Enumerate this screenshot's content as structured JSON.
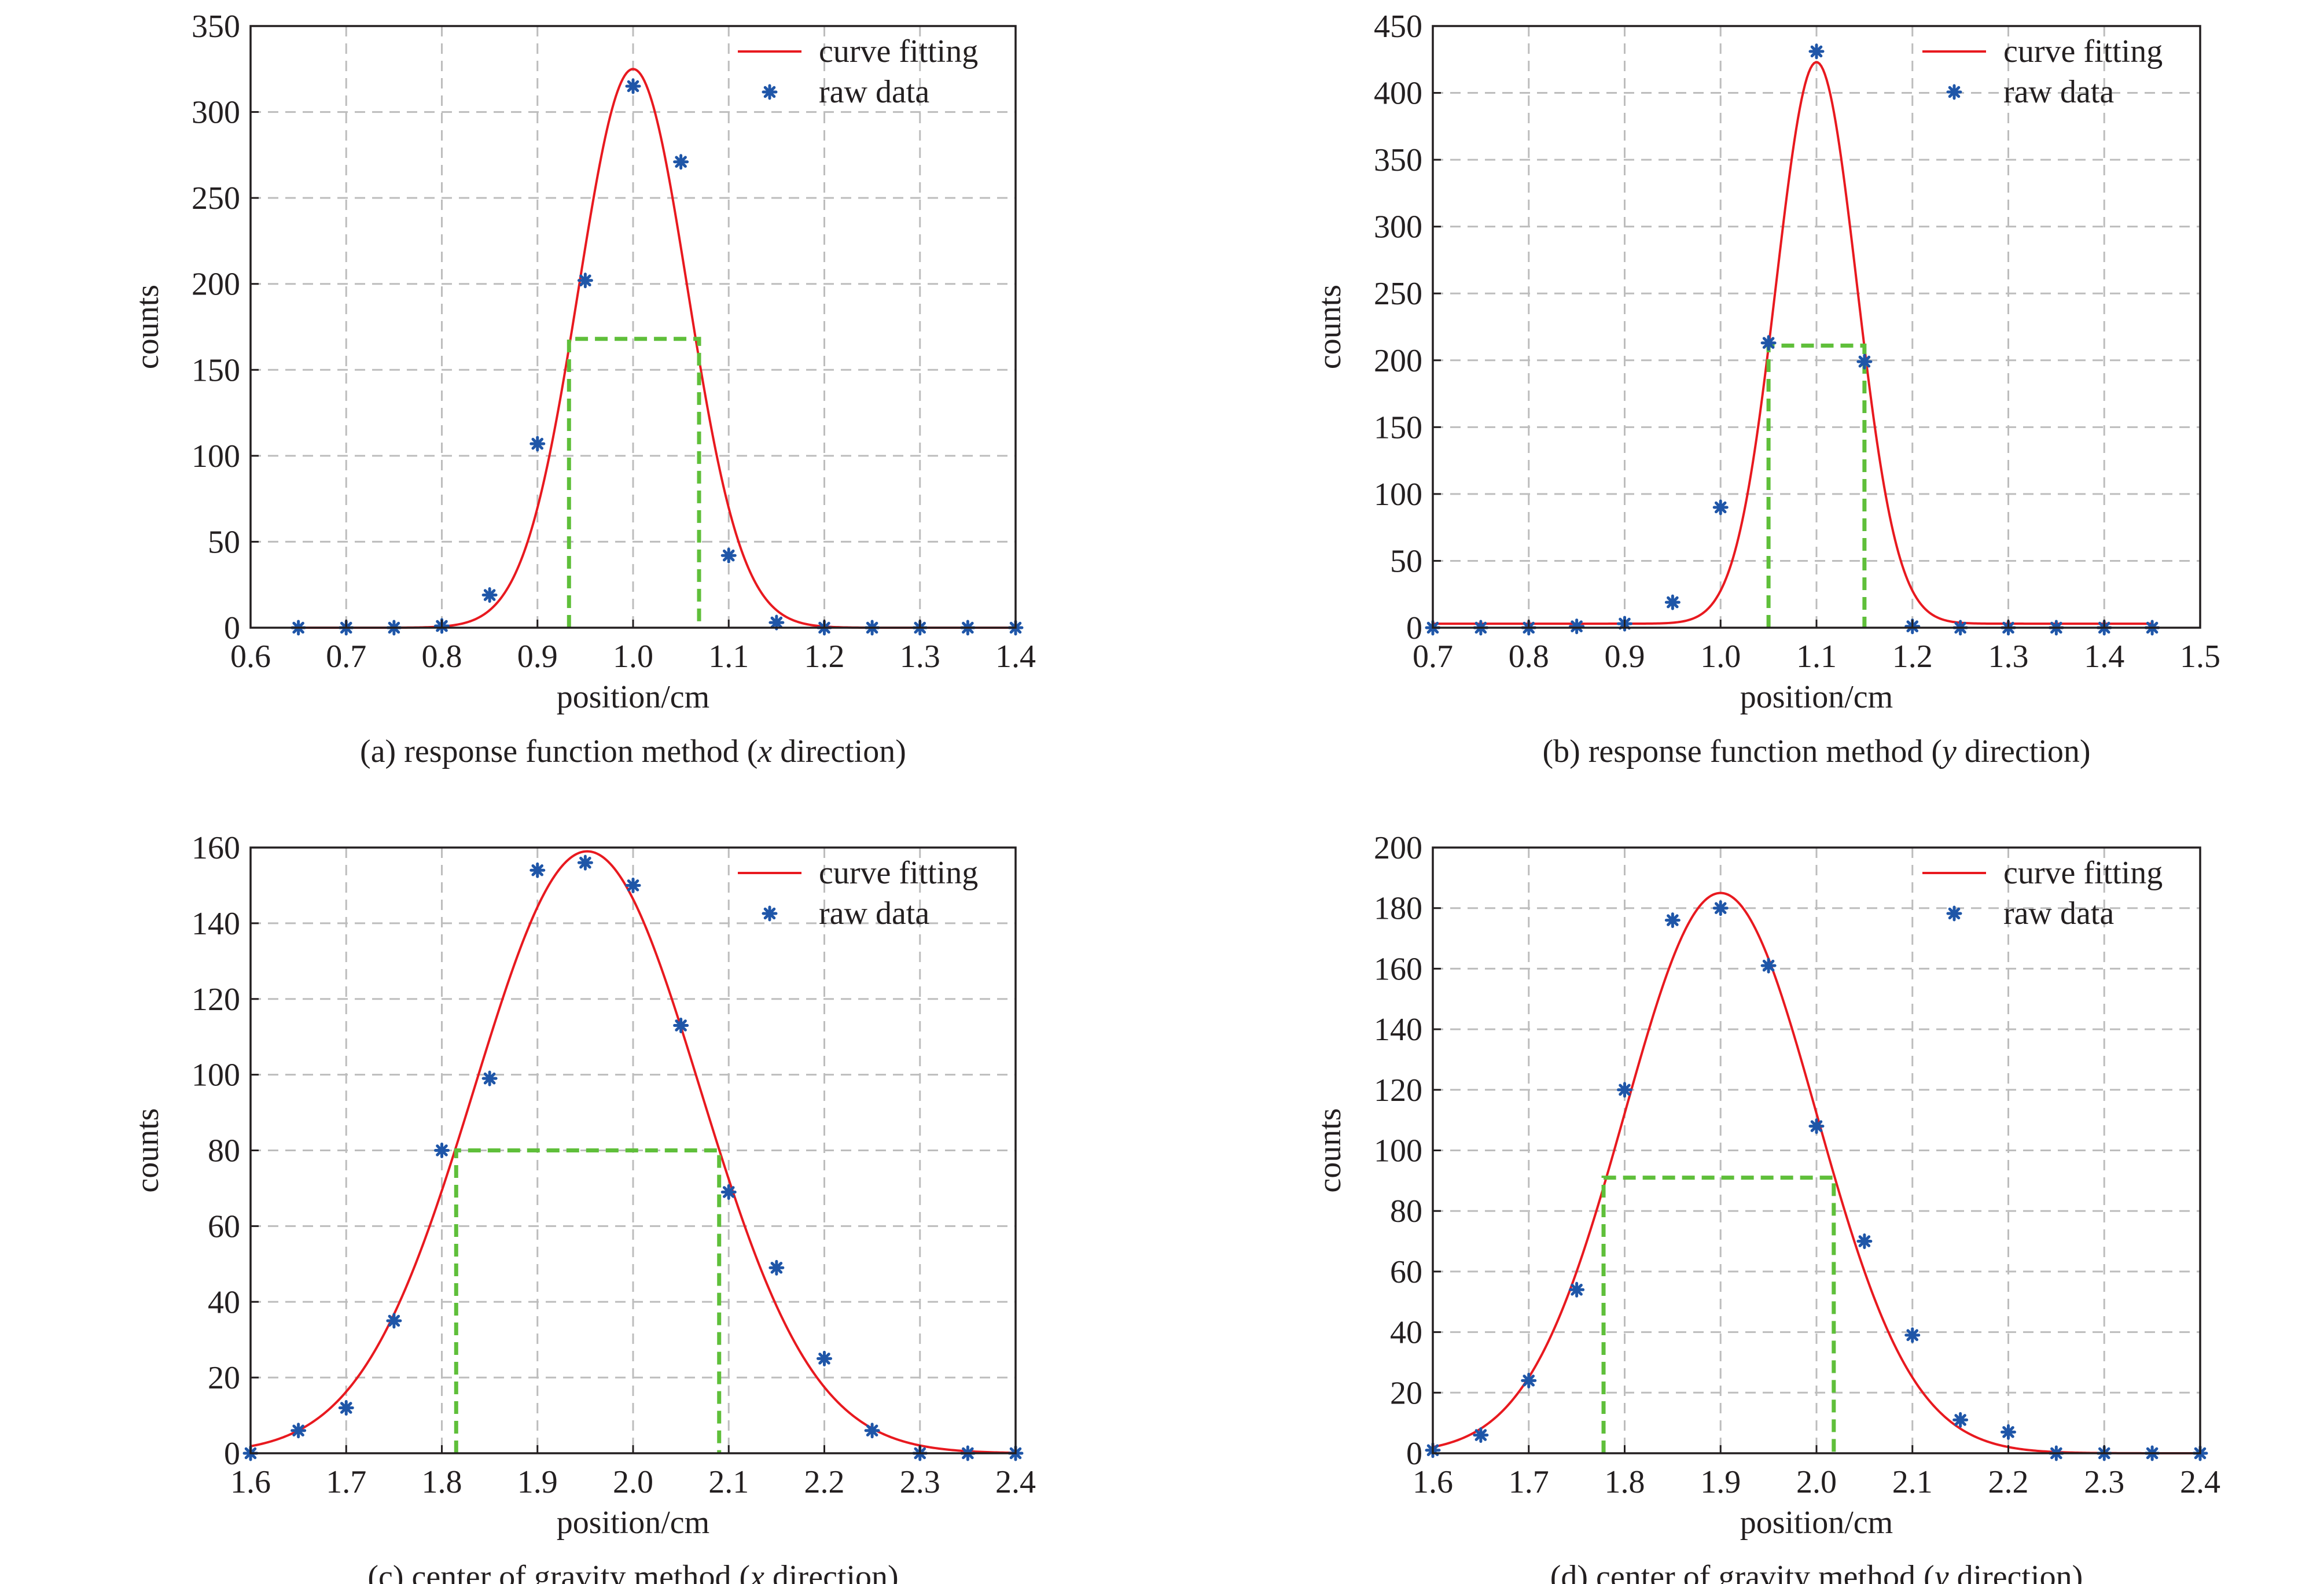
{
  "legend": {
    "fit_label": "curve fitting",
    "raw_label": "raw data"
  },
  "colors": {
    "fit": "#e8191f",
    "raw": "#1f56a8",
    "fwhm": "#5fbf3a",
    "grid": "#bdbdbd",
    "axis": "#231f20"
  },
  "chart_data": [
    {
      "panel": "a",
      "type": "scatter",
      "caption_pre": "(a) response function method (",
      "caption_var": "x",
      "caption_post": " direction)",
      "xlabel": "position/cm",
      "ylabel": "counts",
      "xlim": [
        0.6,
        1.4
      ],
      "ylim": [
        0,
        350
      ],
      "xticks": [
        "0.6",
        "0.7",
        "0.8",
        "0.9",
        "1.0",
        "1.1",
        "1.2",
        "1.3",
        "1.4"
      ],
      "yticks": [
        "0",
        "50",
        "100",
        "150",
        "200",
        "250",
        "300",
        "350"
      ],
      "grid": true,
      "legend_position": "top-right",
      "series": [
        {
          "name": "raw data",
          "x": [
            0.65,
            0.7,
            0.75,
            0.8,
            0.85,
            0.9,
            0.95,
            1.0,
            1.05,
            1.1,
            1.15,
            1.2,
            1.25,
            1.3,
            1.35,
            1.4
          ],
          "y": [
            0,
            0,
            0,
            1,
            19,
            107,
            202,
            315,
            271,
            42,
            3,
            0,
            0,
            0,
            0,
            0
          ]
        },
        {
          "name": "curve fitting",
          "model": "gaussian",
          "amplitude": 325,
          "center": 1.0,
          "sigma": 0.057,
          "offset": 0,
          "x_range": [
            0.65,
            1.4
          ]
        }
      ],
      "fwhm": {
        "x_left": 0.933,
        "x_right": 1.069,
        "level": 168
      }
    },
    {
      "panel": "b",
      "type": "scatter",
      "caption_pre": "(b) response function method (",
      "caption_var": "y",
      "caption_post": " direction)",
      "xlabel": "position/cm",
      "ylabel": "counts",
      "xlim": [
        0.7,
        1.5
      ],
      "ylim": [
        0,
        450
      ],
      "xticks": [
        "0.7",
        "0.8",
        "0.9",
        "1.0",
        "1.1",
        "1.2",
        "1.3",
        "1.4",
        "1.5"
      ],
      "yticks": [
        "0",
        "50",
        "100",
        "150",
        "200",
        "250",
        "300",
        "350",
        "400",
        "450"
      ],
      "grid": true,
      "legend_position": "top-right",
      "series": [
        {
          "name": "raw data",
          "x": [
            0.7,
            0.75,
            0.8,
            0.85,
            0.9,
            0.95,
            1.0,
            1.05,
            1.1,
            1.15,
            1.2,
            1.25,
            1.3,
            1.35,
            1.4,
            1.45
          ],
          "y": [
            0,
            0,
            0,
            1,
            3,
            19,
            90,
            213,
            431,
            199,
            1,
            0,
            0,
            0,
            0,
            0
          ]
        },
        {
          "name": "curve fitting",
          "model": "gaussian",
          "amplitude": 420,
          "center": 1.1,
          "sigma": 0.042,
          "offset": 3,
          "x_range": [
            0.7,
            1.45
          ]
        }
      ],
      "fwhm": {
        "x_left": 1.05,
        "x_right": 1.15,
        "level": 211
      }
    },
    {
      "panel": "c",
      "type": "scatter",
      "caption_pre": "(c) center of gravity method (",
      "caption_var": "x",
      "caption_post": " direction)",
      "xlabel": "position/cm",
      "ylabel": "counts",
      "xlim": [
        1.6,
        2.4
      ],
      "ylim": [
        0,
        160
      ],
      "xticks": [
        "1.6",
        "1.7",
        "1.8",
        "1.9",
        "2.0",
        "2.1",
        "2.2",
        "2.3",
        "2.4"
      ],
      "yticks": [
        "0",
        "20",
        "40",
        "60",
        "80",
        "100",
        "120",
        "140",
        "160"
      ],
      "grid": true,
      "legend_position": "top-right",
      "series": [
        {
          "name": "raw data",
          "x": [
            1.6,
            1.65,
            1.7,
            1.75,
            1.8,
            1.85,
            1.9,
            1.95,
            2.0,
            2.05,
            2.1,
            2.15,
            2.2,
            2.25,
            2.3,
            2.35,
            2.4
          ],
          "y": [
            0,
            6,
            12,
            35,
            80,
            99,
            154,
            156,
            150,
            113,
            69,
            49,
            25,
            6,
            0,
            0,
            0
          ]
        },
        {
          "name": "curve fitting",
          "model": "gaussian",
          "amplitude": 159,
          "center": 1.952,
          "sigma": 0.118,
          "offset": 0,
          "x_range": [
            1.6,
            2.4
          ]
        }
      ],
      "fwhm": {
        "x_left": 1.815,
        "x_right": 2.09,
        "level": 80
      }
    },
    {
      "panel": "d",
      "type": "scatter",
      "caption_pre": "(d) center of gravity method (",
      "caption_var": "y",
      "caption_post": " direction)",
      "xlabel": "position/cm",
      "ylabel": "counts",
      "xlim": [
        1.6,
        2.4
      ],
      "ylim": [
        0,
        200
      ],
      "xticks": [
        "1.6",
        "1.7",
        "1.8",
        "1.9",
        "2.0",
        "2.1",
        "2.2",
        "2.3",
        "2.4"
      ],
      "yticks": [
        "0",
        "20",
        "40",
        "60",
        "80",
        "100",
        "120",
        "140",
        "160",
        "180",
        "200"
      ],
      "grid": true,
      "legend_position": "top-right",
      "series": [
        {
          "name": "raw data",
          "x": [
            1.6,
            1.65,
            1.7,
            1.75,
            1.8,
            1.85,
            1.9,
            1.95,
            2.0,
            2.05,
            2.1,
            2.15,
            2.2,
            2.25,
            2.3,
            2.35,
            2.4
          ],
          "y": [
            1,
            6,
            24,
            54,
            120,
            176,
            180,
            161,
            108,
            70,
            39,
            11,
            7,
            0,
            0,
            0,
            0
          ]
        },
        {
          "name": "curve fitting",
          "model": "gaussian",
          "amplitude": 185,
          "center": 1.9,
          "sigma": 0.1,
          "offset": 0,
          "x_range": [
            1.6,
            2.4
          ]
        }
      ],
      "fwhm": {
        "x_left": 1.778,
        "x_right": 2.018,
        "level": 91
      }
    }
  ]
}
